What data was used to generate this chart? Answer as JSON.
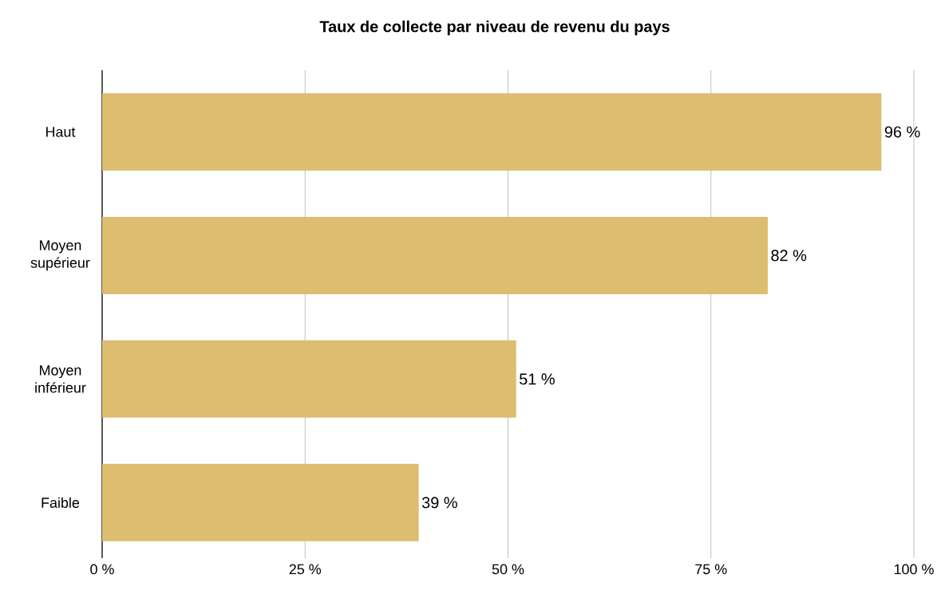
{
  "chart_data": {
    "type": "bar",
    "orientation": "horizontal",
    "title": "Taux de collecte par niveau de revenu du pays",
    "categories": [
      "Haut",
      "Moyen supérieur",
      "Moyen inférieur",
      "Faible"
    ],
    "values": [
      96,
      82,
      51,
      39
    ],
    "value_labels": [
      "96 %",
      "82 %",
      "51 %",
      "39 %"
    ],
    "color": "#ddbd6f",
    "xlim": [
      0,
      100
    ],
    "xticks": [
      {
        "value": 0,
        "label": "0 %"
      },
      {
        "value": 25,
        "label": "25 %"
      },
      {
        "value": 50,
        "label": "50 %"
      },
      {
        "value": 75,
        "label": "75 %"
      },
      {
        "value": 100,
        "label": "100 %"
      }
    ],
    "grid": "x"
  }
}
